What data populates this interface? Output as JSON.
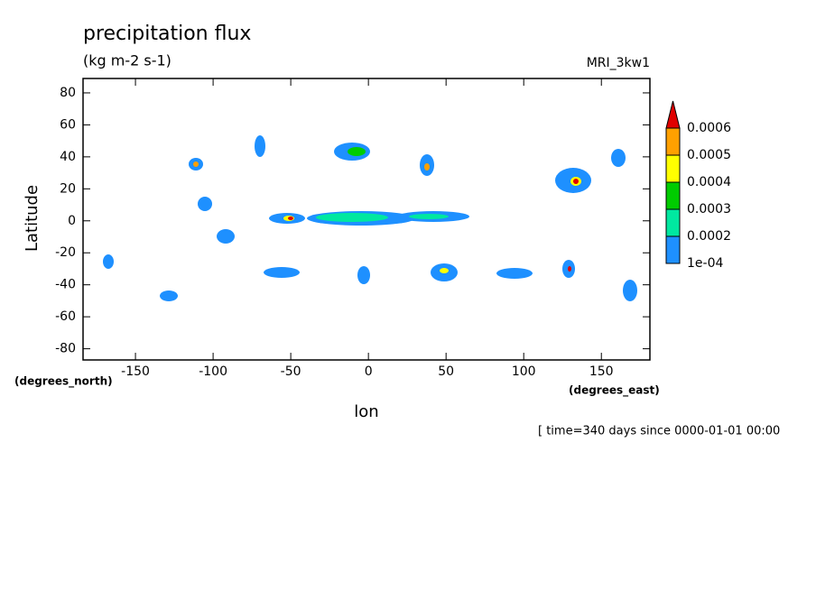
{
  "chart_data": {
    "type": "contour",
    "title": "precipitation flux",
    "subtitle": "(kg m-2 s-1)",
    "source": "MRI_3kw1",
    "xlabel": "lon",
    "ylabel": "Latitude",
    "x_units": "(degrees_east)",
    "y_units": "(degrees_north)",
    "footer": "[ time=340 days since 0000-01-01 00:00",
    "xlim": [
      -183.75,
      181.25
    ],
    "ylim": [
      -87,
      89
    ],
    "xticks": [
      -150,
      -100,
      -50,
      0,
      50,
      100,
      150
    ],
    "yticks": [
      -80,
      -60,
      -40,
      -20,
      0,
      20,
      40,
      60,
      80
    ],
    "colorbar": {
      "levels": [
        {
          "value": 0.0001,
          "label": "1e-04"
        },
        0.0002,
        0.0003,
        0.0004,
        0.0005,
        0.0006
      ],
      "colors": [
        "#1e90ff",
        "#00e8a0",
        "#00cc00",
        "#ffff00",
        "#ffa000",
        "#e00000"
      ]
    }
  }
}
